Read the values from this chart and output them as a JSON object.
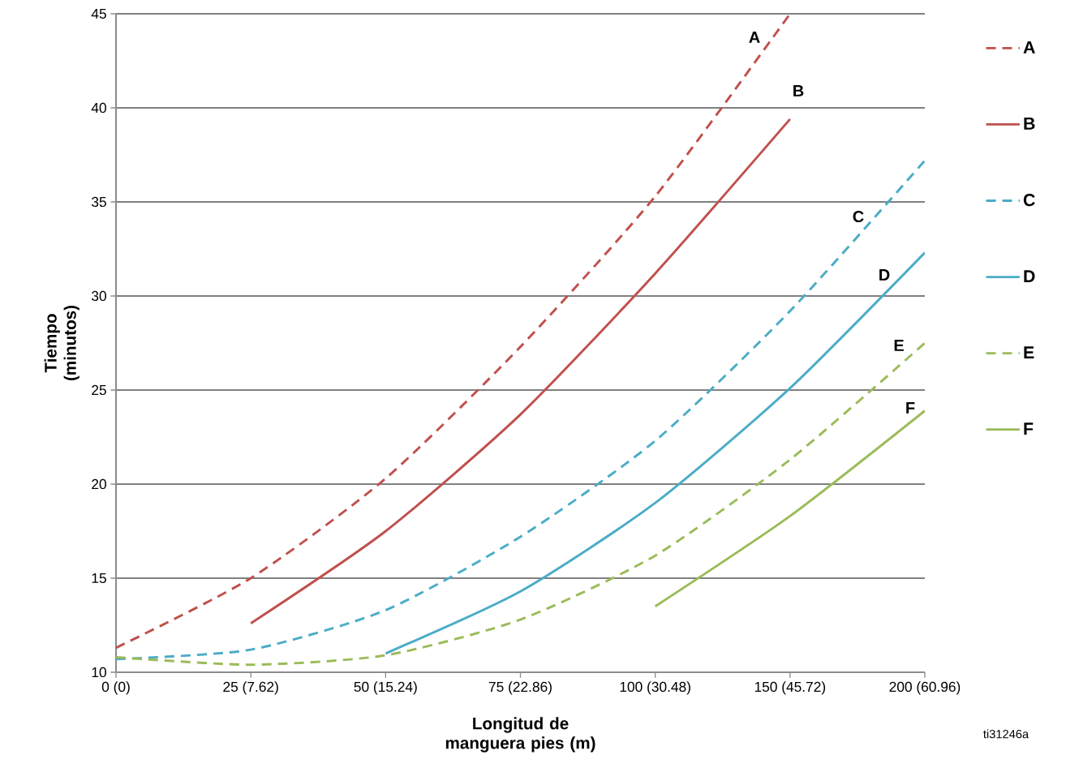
{
  "chart_data": {
    "type": "line",
    "xlabel": "Longitud de manguera pies (m)",
    "ylabel": "Tiempo (minutos)",
    "categories": [
      "0 (0)",
      "25 (7.62)",
      "50 (15.24)",
      "75 (22.86)",
      "100 (30.48)",
      "150 (45.72)",
      "200 (60.96)"
    ],
    "ylim": [
      10,
      45
    ],
    "yticks": [
      10,
      15,
      20,
      25,
      30,
      35,
      40,
      45
    ],
    "grid": "y",
    "legend": "right",
    "series": [
      {
        "name": "A",
        "color": "#c0504d",
        "line_style": "dashed",
        "values": [
          11.3,
          15,
          20.3,
          27.3,
          35.3,
          45,
          null
        ]
      },
      {
        "name": "B",
        "color": "#c0504d",
        "line_style": "solid",
        "values": [
          null,
          12.6,
          17.5,
          23.7,
          31.2,
          39.4,
          null
        ]
      },
      {
        "name": "C",
        "color": "#4bacc6",
        "line_style": "dashed",
        "values": [
          10.7,
          11.2,
          13.3,
          17.2,
          22.3,
          29.2,
          37.2
        ]
      },
      {
        "name": "D",
        "color": "#4bacc6",
        "line_style": "solid",
        "values": [
          null,
          null,
          11,
          14.3,
          19,
          25.1,
          32.3
        ]
      },
      {
        "name": "E",
        "color": "#9bbb59",
        "line_style": "dashed",
        "values": [
          10.8,
          10.4,
          10.9,
          12.8,
          16.2,
          21.3,
          27.5
        ]
      },
      {
        "name": "F",
        "color": "#9bbb59",
        "line_style": "solid",
        "values": [
          null,
          null,
          null,
          null,
          13.5,
          18.3,
          23.9
        ]
      }
    ],
    "annotations": [
      "A",
      "B",
      "C",
      "D",
      "E",
      "F",
      "ti31246a"
    ]
  }
}
